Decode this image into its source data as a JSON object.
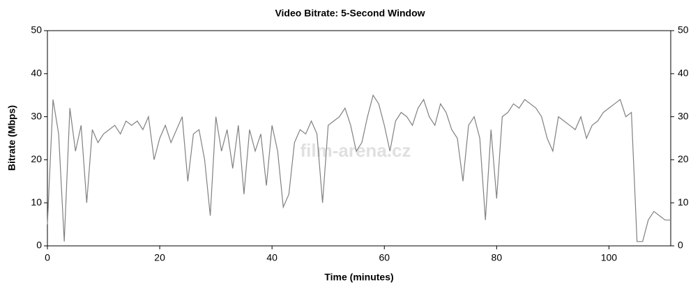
{
  "chart_data": {
    "type": "line",
    "title": "Video Bitrate: 5-Second Window",
    "x_label": "Time (minutes)",
    "y_label": "Bitrate (Mbps)",
    "watermark": "film-arena.cz",
    "x": [
      0,
      1,
      2,
      3,
      4,
      5,
      6,
      7,
      8,
      9,
      10,
      11,
      12,
      13,
      14,
      15,
      16,
      17,
      18,
      19,
      20,
      21,
      22,
      23,
      24,
      25,
      26,
      27,
      28,
      29,
      30,
      31,
      32,
      33,
      34,
      35,
      36,
      37,
      38,
      39,
      40,
      41,
      42,
      43,
      44,
      45,
      46,
      47,
      48,
      49,
      50,
      51,
      52,
      53,
      54,
      55,
      56,
      57,
      58,
      59,
      60,
      61,
      62,
      63,
      64,
      65,
      66,
      67,
      68,
      69,
      70,
      71,
      72,
      73,
      74,
      75,
      76,
      77,
      78,
      79,
      80,
      81,
      82,
      83,
      84,
      85,
      86,
      87,
      88,
      89,
      90,
      91,
      92,
      93,
      94,
      95,
      96,
      97,
      98,
      99,
      100,
      101,
      102,
      103,
      104,
      105,
      106,
      107,
      108,
      109,
      110,
      111
    ],
    "series": [
      {
        "name": "Bitrate",
        "color": "#808080",
        "values": [
          5,
          34,
          26,
          1,
          32,
          22,
          28,
          10,
          27,
          24,
          26,
          27,
          28,
          26,
          29,
          28,
          29,
          27,
          30,
          20,
          25,
          28,
          24,
          27,
          30,
          15,
          26,
          27,
          20,
          7,
          30,
          22,
          27,
          18,
          28,
          12,
          27,
          22,
          26,
          14,
          28,
          22,
          9,
          12,
          24,
          27,
          26,
          29,
          26,
          10,
          28,
          29,
          30,
          32,
          28,
          22,
          24,
          30,
          35,
          33,
          28,
          22,
          29,
          31,
          30,
          28,
          32,
          34,
          30,
          28,
          33,
          31,
          27,
          25,
          15,
          28,
          30,
          25,
          6,
          27,
          11,
          30,
          31,
          33,
          32,
          34,
          33,
          32,
          30,
          25,
          22,
          30,
          29,
          28,
          27,
          30,
          25,
          28,
          29,
          31,
          32,
          33,
          34,
          30,
          31,
          1,
          1,
          6,
          8,
          7,
          6,
          6
        ]
      }
    ],
    "xlim": [
      0,
      111
    ],
    "ylim": [
      0,
      50
    ],
    "xticks": [
      0,
      20,
      40,
      60,
      80,
      100
    ],
    "yticks": [
      0,
      10,
      20,
      30,
      40,
      50
    ]
  }
}
